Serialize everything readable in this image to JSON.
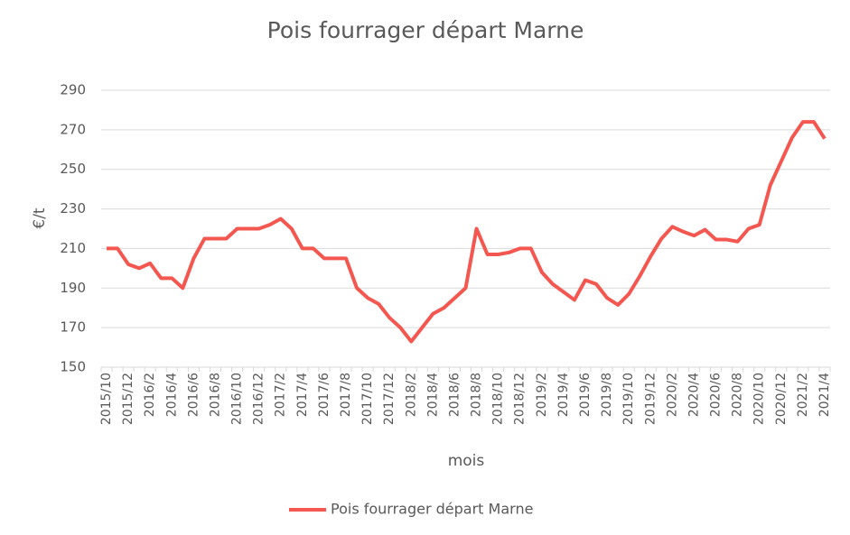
{
  "chart_data": {
    "type": "line",
    "title": "Pois fourrager départ Marne",
    "x_label": "mois",
    "y_label": "€/t",
    "categories": [
      "2015/10",
      null,
      "2015/12",
      null,
      "2016/2",
      null,
      "2016/4",
      null,
      "2016/6",
      null,
      "2016/8",
      null,
      "2016/10",
      null,
      "2016/12",
      null,
      "2017/2",
      null,
      "2017/4",
      null,
      "2017/6",
      null,
      "2017/8",
      null,
      "2017/10",
      null,
      "2017/12",
      null,
      "2018/2",
      null,
      "2018/4",
      null,
      "2018/6",
      null,
      "2018/8",
      null,
      "2018/10",
      null,
      "2018/12",
      null,
      "2019/2",
      null,
      "2019/4",
      null,
      "2019/6",
      null,
      "2019/8",
      null,
      "2019/10",
      null,
      "2019/12",
      null,
      "2020/2",
      null,
      "2020/4",
      null,
      "2020/6",
      null,
      "2020/8",
      null,
      "2020/10",
      null,
      "2020/12",
      null,
      "2021/2",
      null,
      "2021/4"
    ],
    "series": [
      {
        "name": "Pois fourrager départ Marne",
        "color": "#f4574f",
        "values": [
          210,
          210,
          202,
          200,
          202.5,
          195,
          195,
          190,
          205,
          215,
          215,
          215,
          220,
          220,
          220,
          222,
          225,
          220,
          210,
          210,
          205,
          205,
          205,
          190,
          185,
          182,
          175,
          170,
          163,
          170,
          177,
          180,
          185,
          190,
          220,
          207,
          207,
          208,
          210,
          210,
          198,
          192,
          188,
          184,
          194,
          192,
          185,
          181.5,
          187,
          196,
          206,
          215,
          221,
          218.5,
          216.5,
          219.5,
          214.5,
          214.5,
          213.5,
          220,
          222,
          242,
          254,
          266,
          274,
          274,
          265.5
        ]
      }
    ],
    "ylim": [
      150,
      290
    ],
    "yticks": [
      150,
      170,
      190,
      210,
      230,
      250,
      270,
      290
    ],
    "grid": true,
    "legend": "bottom"
  }
}
